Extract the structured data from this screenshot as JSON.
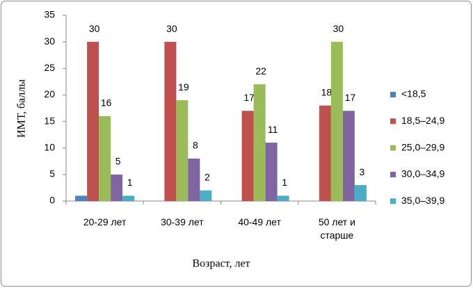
{
  "chart_data": {
    "type": "bar",
    "x_label": "Возраст, лет",
    "y_label": "ИМТ, баллы",
    "categories": [
      "20-29 лет",
      "30-39 лет",
      "40-49 лет",
      "50 лет и старше"
    ],
    "series": [
      {
        "name": "<18,5",
        "color": "#4f81bd",
        "values": [
          1,
          0,
          0,
          0
        ],
        "labels": false
      },
      {
        "name": "18,5–24,9",
        "color": "#c0504d",
        "values": [
          30,
          30,
          17,
          18
        ],
        "labels": true
      },
      {
        "name": "25,0–29,9",
        "color": "#9bbb59",
        "values": [
          16,
          19,
          22,
          30
        ],
        "labels": true
      },
      {
        "name": "30,0–34,9",
        "color": "#8064a2",
        "values": [
          5,
          8,
          11,
          17
        ],
        "labels": true
      },
      {
        "name": "35,0–39,9",
        "color": "#4bacc6",
        "values": [
          1,
          2,
          1,
          3
        ],
        "labels": true
      }
    ],
    "ylim": [
      0,
      35
    ],
    "yticks": [
      0,
      5,
      10,
      15,
      20,
      25,
      30,
      35
    ],
    "grid": false,
    "legend": "right"
  }
}
